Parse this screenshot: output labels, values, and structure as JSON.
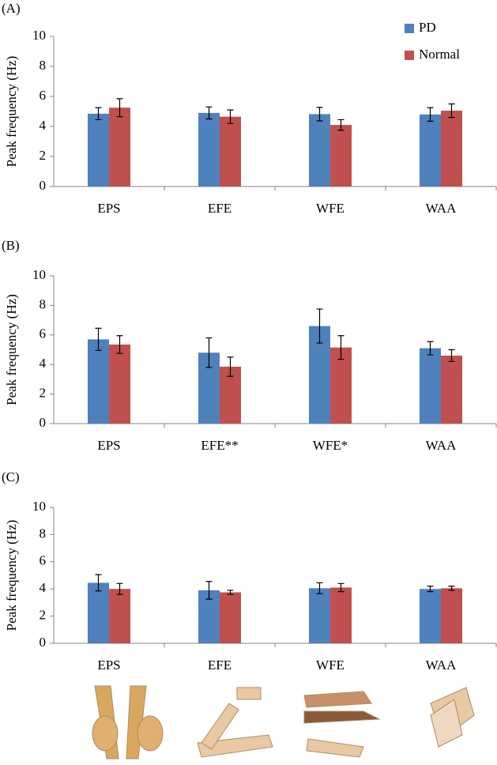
{
  "chart_data": [
    {
      "type": "bar",
      "title": "(A)",
      "ylabel": "Peak frequency (Hz)",
      "categories": [
        "EPS",
        "EFE",
        "WFE",
        "WAA"
      ],
      "series": [
        {
          "name": "PD",
          "color": "#4f81bd",
          "values": [
            4.85,
            4.9,
            4.82,
            4.8
          ],
          "errors": [
            0.4,
            0.4,
            0.45,
            0.45
          ]
        },
        {
          "name": "Normal",
          "color": "#c0504d",
          "values": [
            5.25,
            4.65,
            4.1,
            5.05
          ],
          "errors": [
            0.6,
            0.45,
            0.35,
            0.45
          ]
        }
      ],
      "ylim": [
        0,
        10
      ],
      "yticks": [
        0,
        2,
        4,
        6,
        8,
        10
      ],
      "legend": "upper right"
    },
    {
      "type": "bar",
      "title": "(B)",
      "ylabel": "Peak frequency (Hz)",
      "categories": [
        "EPS",
        "EFE**",
        "WFE*",
        "WAA"
      ],
      "series": [
        {
          "color": "#4f81bd",
          "values": [
            5.7,
            4.8,
            6.6,
            5.1
          ],
          "errors": [
            0.75,
            1.0,
            1.15,
            0.45
          ]
        },
        {
          "color": "#c0504d",
          "values": [
            5.35,
            3.85,
            5.15,
            4.6
          ],
          "errors": [
            0.6,
            0.65,
            0.8,
            0.4
          ]
        }
      ],
      "ylim": [
        0,
        10
      ],
      "yticks": [
        0,
        2,
        4,
        6,
        8,
        10
      ]
    },
    {
      "type": "bar",
      "title": "(C)",
      "ylabel": "Peak frequency (Hz)",
      "categories": [
        "EPS",
        "EFE",
        "WFE",
        "WAA"
      ],
      "series": [
        {
          "color": "#4f81bd",
          "values": [
            4.45,
            3.9,
            4.05,
            4.0
          ],
          "errors": [
            0.6,
            0.65,
            0.4,
            0.2
          ]
        },
        {
          "color": "#c0504d",
          "values": [
            4.0,
            3.75,
            4.1,
            4.05
          ],
          "errors": [
            0.4,
            0.15,
            0.3,
            0.15
          ]
        }
      ],
      "ylim": [
        0,
        10
      ],
      "yticks": [
        0,
        2,
        4,
        6,
        8,
        10
      ]
    }
  ]
}
